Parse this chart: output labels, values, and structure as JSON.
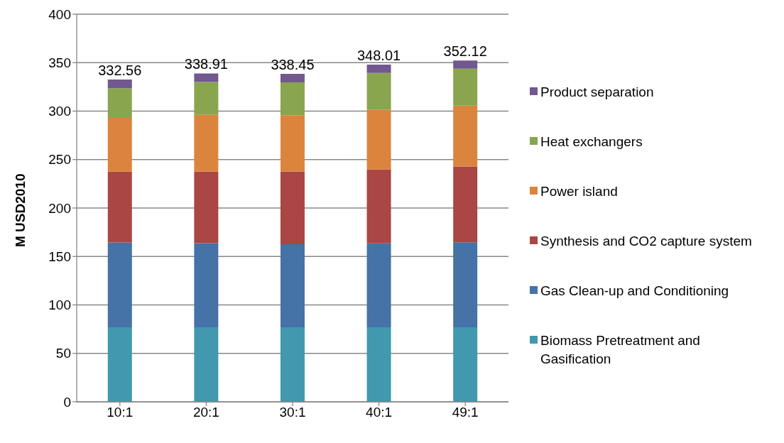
{
  "chart_data": {
    "type": "bar",
    "stacked": true,
    "ylabel": "M USD2010",
    "categories": [
      "10:1",
      "20:1",
      "30:1",
      "40:1",
      "49:1"
    ],
    "series": [
      {
        "name": "Biomass Pretreatment and Gasification",
        "color": "#4198af",
        "values": [
          77,
          77,
          77,
          77,
          77
        ]
      },
      {
        "name": "Gas Clean-up and Conditioning",
        "color": "#4572a7",
        "values": [
          87.4,
          86.8,
          85.6,
          86.6,
          87.6
        ]
      },
      {
        "name": "Synthesis and CO2 capture system",
        "color": "#aa4643",
        "values": [
          73.2,
          73.7,
          75.1,
          76.2,
          78.2
        ]
      },
      {
        "name": "Power island",
        "color": "#db843d",
        "values": [
          55.5,
          58.7,
          58,
          61.4,
          62.9
        ]
      },
      {
        "name": "Heat exchangers",
        "color": "#89a54e",
        "values": [
          30.5,
          33.9,
          33.9,
          38.1,
          38
        ]
      },
      {
        "name": "Product separation",
        "color": "#71588f",
        "values": [
          8.96,
          8.81,
          8.85,
          8.71,
          8.42
        ]
      }
    ],
    "totals": [
      "332.56",
      "338.91",
      "338.45",
      "348.01",
      "352.12"
    ],
    "ylim": [
      0,
      400
    ],
    "yticks": [
      0,
      50,
      100,
      150,
      200,
      250,
      300,
      350,
      400
    ],
    "grid": "y",
    "legend": "right"
  }
}
